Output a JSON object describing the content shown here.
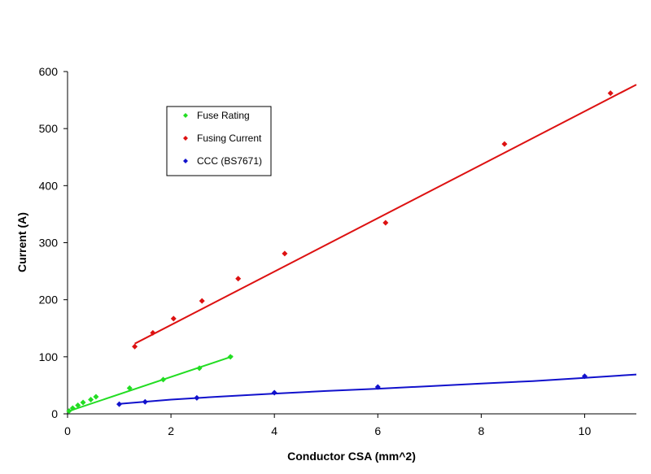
{
  "chart_data": {
    "type": "scatter",
    "title": "",
    "xlabel": "Conductor CSA (mm^2)",
    "ylabel": "Current (A)",
    "xlim": [
      0,
      11
    ],
    "ylim": [
      0,
      600
    ],
    "x_ticks": [
      0,
      2,
      4,
      6,
      8,
      10
    ],
    "y_ticks": [
      0,
      100,
      200,
      300,
      400,
      500,
      600
    ],
    "grid": false,
    "legend_position": "top-left",
    "series": [
      {
        "name": "Fuse Rating",
        "color": "#22dd22",
        "marker": "diamond",
        "trendline": "linear",
        "points": [
          [
            0.03,
            5
          ],
          [
            0.1,
            10
          ],
          [
            0.2,
            15
          ],
          [
            0.3,
            20
          ],
          [
            0.45,
            25
          ],
          [
            0.55,
            30
          ],
          [
            1.2,
            45
          ],
          [
            1.85,
            60
          ],
          [
            2.55,
            80
          ],
          [
            3.15,
            100
          ]
        ],
        "trend": [
          [
            0,
            4
          ],
          [
            3.2,
            101
          ]
        ]
      },
      {
        "name": "Fusing Current",
        "color": "#dd1111",
        "marker": "diamond",
        "trendline": "linear",
        "points": [
          [
            1.3,
            118
          ],
          [
            1.65,
            142
          ],
          [
            2.05,
            167
          ],
          [
            2.6,
            198
          ],
          [
            3.3,
            237
          ],
          [
            4.2,
            281
          ],
          [
            6.15,
            335
          ],
          [
            8.45,
            473
          ],
          [
            10.5,
            562
          ]
        ],
        "trend": [
          [
            1.3,
            123
          ],
          [
            11,
            577
          ]
        ]
      },
      {
        "name": "CCC (BS7671)",
        "color": "#1111cc",
        "marker": "diamond",
        "trendline": "power",
        "points": [
          [
            1.0,
            17
          ],
          [
            1.5,
            21
          ],
          [
            2.5,
            28
          ],
          [
            4.0,
            37
          ],
          [
            6.0,
            47
          ],
          [
            10.0,
            66
          ]
        ],
        "trend": [
          [
            1,
            17.5
          ],
          [
            2,
            25
          ],
          [
            3,
            30.5
          ],
          [
            4,
            35.5
          ],
          [
            5,
            40
          ],
          [
            6,
            44
          ],
          [
            7,
            48.5
          ],
          [
            8,
            53
          ],
          [
            9,
            57.5
          ],
          [
            10,
            63
          ],
          [
            11,
            69
          ]
        ]
      }
    ]
  }
}
